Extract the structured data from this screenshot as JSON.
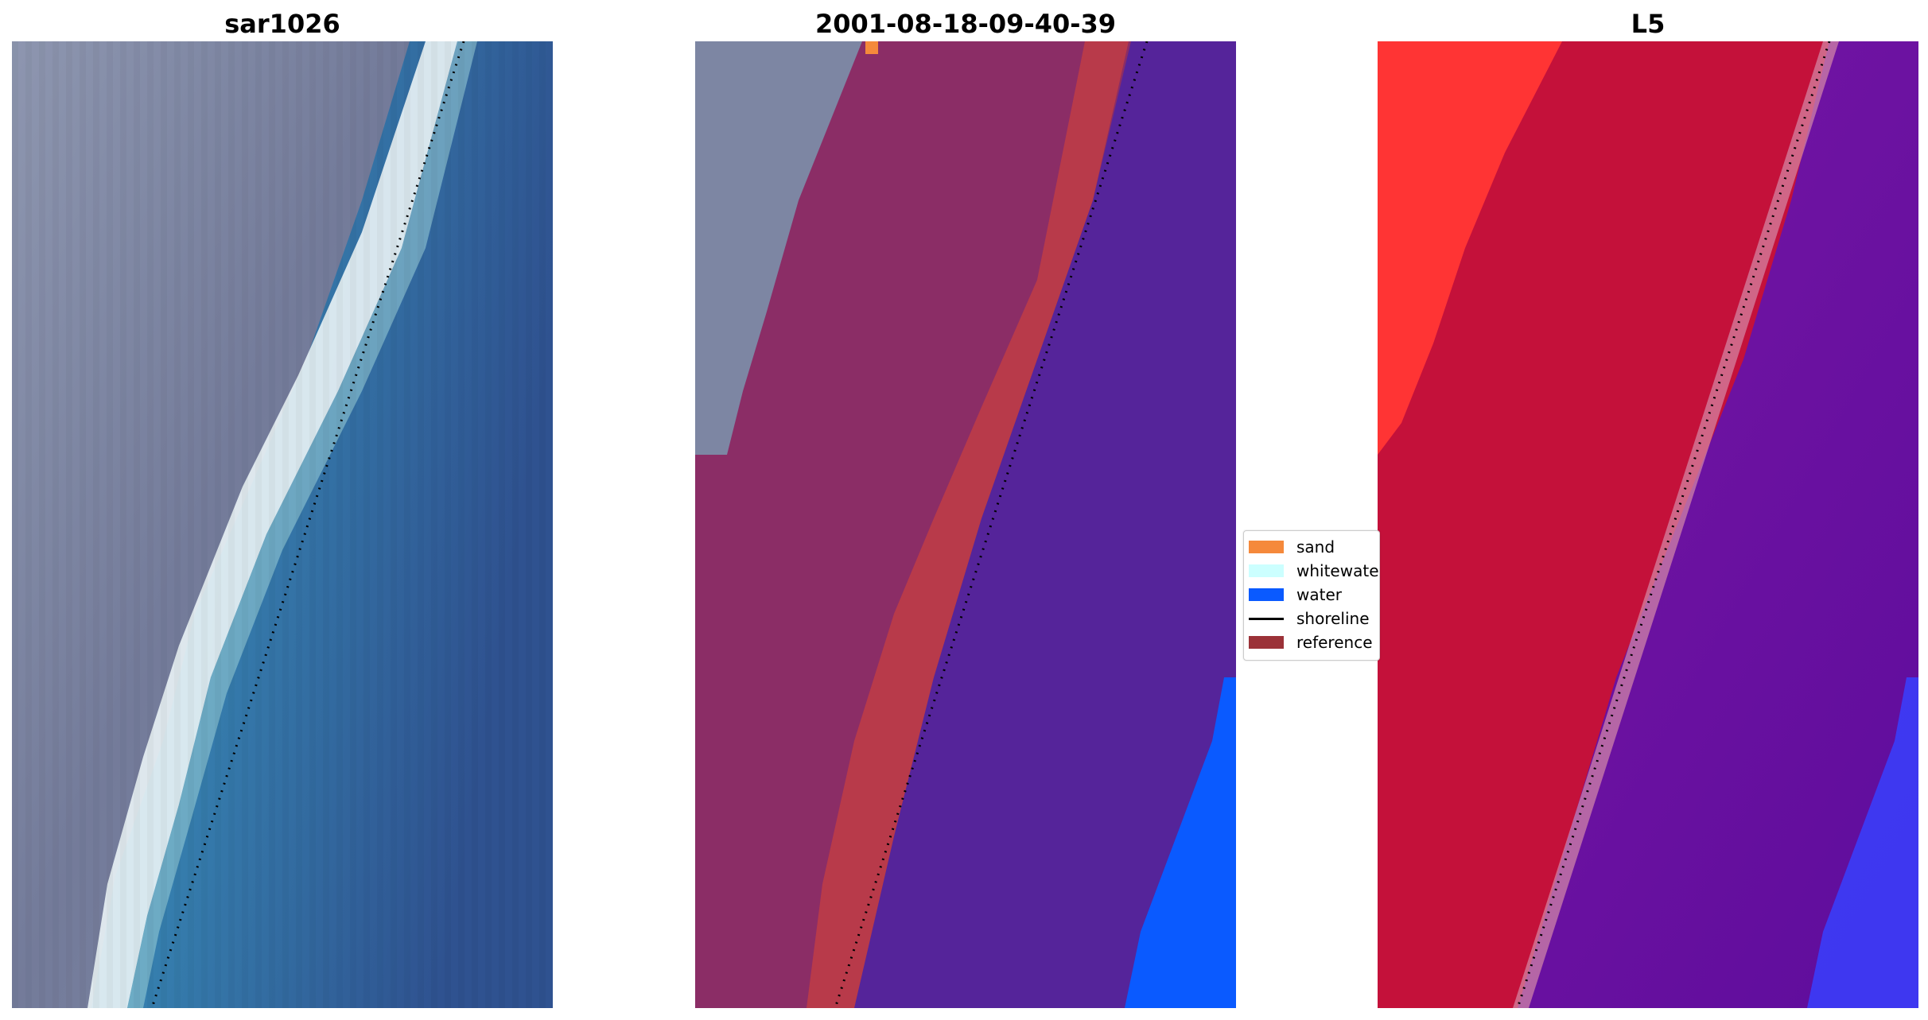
{
  "panels": [
    {
      "title": "sar1026"
    },
    {
      "title": "2001-08-18-09-40-39"
    },
    {
      "title": "L5"
    }
  ],
  "legend": {
    "items": [
      {
        "label": "sand",
        "color": "#f5893b",
        "kind": "patch"
      },
      {
        "label": "whitewater",
        "color": "#ccffff",
        "kind": "patch"
      },
      {
        "label": "water",
        "color": "#0a5aff",
        "kind": "patch"
      },
      {
        "label": "shoreline",
        "color": "#000000",
        "kind": "line"
      },
      {
        "label": "reference",
        "color": "#9b3238",
        "kind": "patch"
      }
    ]
  },
  "colors": {
    "land": "#7b7d98",
    "beach": "#e4eef2",
    "sea_near": "#3f97b2",
    "sea_far": "#2c5e96",
    "reference": "#8b2d66",
    "sand_overlay": "#b83a4a",
    "water_class": "#55249a",
    "water_blue": "#0a5aff",
    "prob_red": "#c4113a",
    "prob_bright_red": "#ff3434",
    "prob_purple": "#6a12a0",
    "prob_blue": "#3840ff"
  }
}
